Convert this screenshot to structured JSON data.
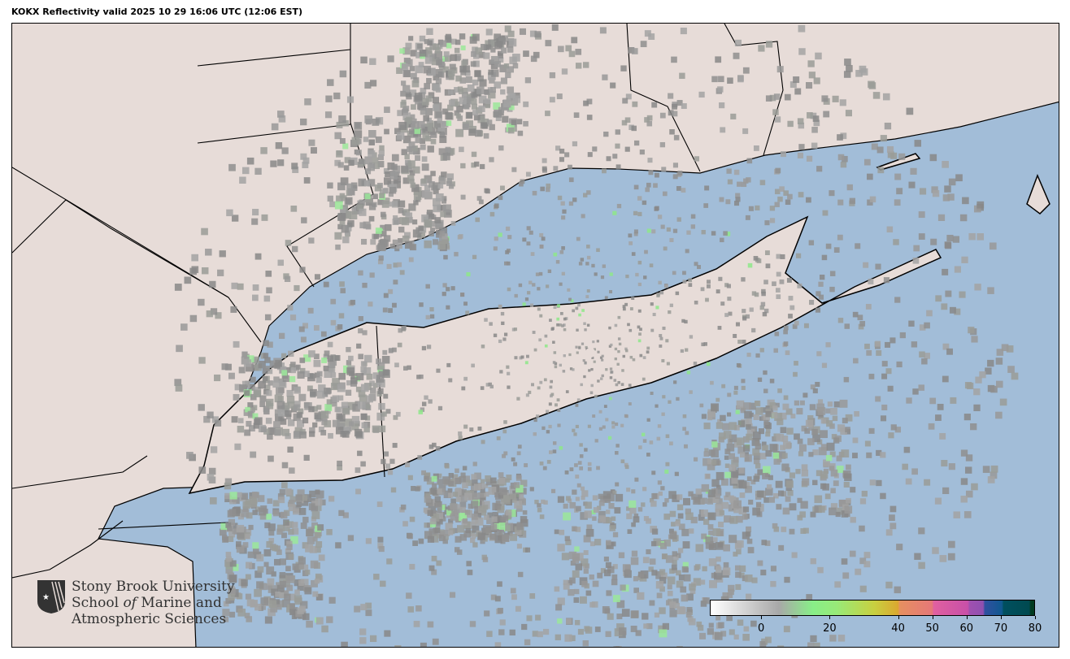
{
  "title": "KOKX Reflectivity valid 2025 10 29 16:06 UTC (12:06 EST)",
  "map": {
    "radar_site": "KOKX",
    "product": "Reflectivity",
    "colors": {
      "land": "#e7dcd8",
      "water": "#a2bdd8",
      "border": "#000000"
    }
  },
  "logo": {
    "line1": "Stony Brook University",
    "line2_a": "School ",
    "line2_b": "of",
    "line2_c": " Marine and",
    "line3": "Atmospheric Sciences"
  },
  "colorbar": {
    "range": [
      -15,
      80
    ],
    "ticks": [
      "0",
      "20",
      "40",
      "50",
      "60",
      "70",
      "80"
    ],
    "tick_values": [
      0,
      20,
      40,
      50,
      60,
      70,
      80
    ],
    "stops": [
      {
        "value": -15,
        "color": "#ffffff"
      },
      {
        "value": 5,
        "color": "#a8a8a8"
      },
      {
        "value": 15,
        "color": "#88ee88"
      },
      {
        "value": 22,
        "color": "#98ea78"
      },
      {
        "value": 33,
        "color": "#c8d040"
      },
      {
        "value": 40,
        "color": "#dba830"
      },
      {
        "value": 40.5,
        "color": "#e69060"
      },
      {
        "value": 50,
        "color": "#e57878"
      },
      {
        "value": 50.5,
        "color": "#e060a0"
      },
      {
        "value": 60.5,
        "color": "#c850a8"
      },
      {
        "value": 61,
        "color": "#a050b0"
      },
      {
        "value": 65,
        "color": "#9050b0"
      },
      {
        "value": 65.5,
        "color": "#3050a0"
      },
      {
        "value": 70.5,
        "color": "#105890"
      },
      {
        "value": 71,
        "color": "#004f5f"
      },
      {
        "value": 78.5,
        "color": "#004a50"
      },
      {
        "value": 79,
        "color": "#003a20"
      },
      {
        "value": 80,
        "color": "#003a20"
      }
    ]
  }
}
